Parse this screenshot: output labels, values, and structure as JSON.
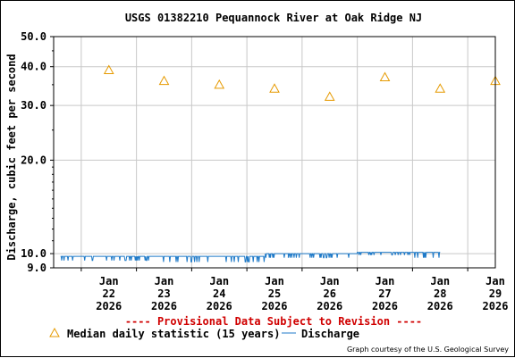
{
  "chart_data": {
    "type": "line",
    "title": "USGS 01382210 Pequannock River at Oak Ridge NJ",
    "ylabel": "Discharge, cubic feet per second",
    "yscale": "log",
    "ylim": [
      9.0,
      50.0
    ],
    "yticks": [
      "9.0",
      "10.0",
      "20.0",
      "30.0",
      "40.0",
      "50.0"
    ],
    "ytick_values": [
      9.0,
      10.0,
      20.0,
      30.0,
      40.0,
      50.0
    ],
    "xticks": [
      {
        "month": "Jan",
        "day": "22",
        "year": "2026"
      },
      {
        "month": "Jan",
        "day": "23",
        "year": "2026"
      },
      {
        "month": "Jan",
        "day": "24",
        "year": "2026"
      },
      {
        "month": "Jan",
        "day": "25",
        "year": "2026"
      },
      {
        "month": "Jan",
        "day": "26",
        "year": "2026"
      },
      {
        "month": "Jan",
        "day": "27",
        "year": "2026"
      },
      {
        "month": "Jan",
        "day": "28",
        "year": "2026"
      },
      {
        "month": "Jan",
        "day": "29",
        "year": "2026"
      }
    ],
    "grid": true,
    "series": [
      {
        "name": "Median daily statistic (15 years)",
        "marker": "triangle",
        "color": "#e69a00",
        "dates": [
          "2026-01-22",
          "2026-01-23",
          "2026-01-24",
          "2026-01-25",
          "2026-01-26",
          "2026-01-27",
          "2026-01-28",
          "2026-01-29"
        ],
        "values": [
          39,
          36,
          35,
          34,
          32,
          37,
          34,
          36
        ]
      },
      {
        "name": "Discharge",
        "color": "#1f7ac8",
        "segments": [
          {
            "start": "2026-01-21 15:00",
            "end": "2026-01-22 09:00",
            "base": 9.8,
            "dip": 9.5
          },
          {
            "start": "2026-01-22 09:00",
            "end": "2026-01-23 08:00",
            "base": 9.8,
            "dip": 9.5
          },
          {
            "start": "2026-01-23 08:00",
            "end": "2026-01-25 08:00",
            "base": 9.8,
            "dip": 9.4
          },
          {
            "start": "2026-01-25 08:00",
            "end": "2026-01-25 18:00",
            "base": 10.0,
            "dip": 9.7
          },
          {
            "start": "2026-01-25 18:00",
            "end": "2026-01-27 00:00",
            "base": 10.0,
            "dip": 9.7
          },
          {
            "start": "2026-01-27 00:00",
            "end": "2026-01-28 00:00",
            "base": 10.1,
            "dip": 9.9
          },
          {
            "start": "2026-01-28 00:00",
            "end": "2026-01-28 12:00",
            "base": 10.1,
            "dip": 9.7
          }
        ]
      }
    ]
  },
  "provisional_note": "---- Provisional Data Subject to Revision ----",
  "legend": {
    "median_label": "Median daily statistic (15 years)",
    "discharge_label": "Discharge"
  },
  "credit": "Graph courtesy of the U.S. Geological Survey",
  "colors": {
    "median": "#e69a00",
    "discharge": "#1f7ac8",
    "provisional": "#d00000",
    "grid": "#c8c8c8"
  }
}
